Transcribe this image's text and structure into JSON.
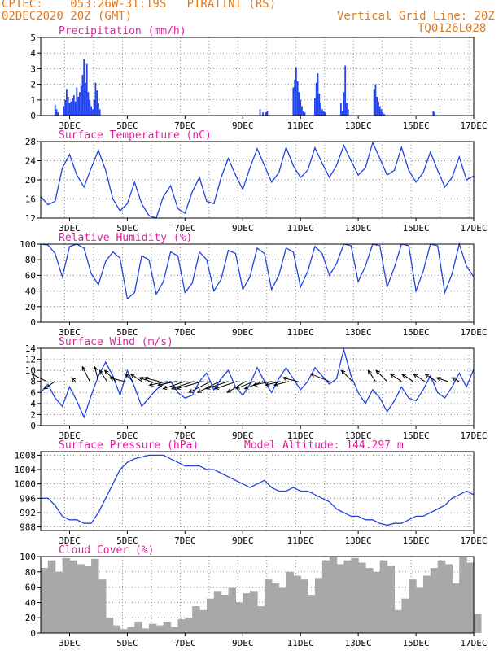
{
  "header": {
    "left_line1": "CPTEC:    053:26W-31:19S   PIRATINI (RS)",
    "left_line2": "02DEC2020 20Z (GMT)",
    "right_line1": "Vertical Grid Line: 20Z",
    "right_line2": "TQ0126L028"
  },
  "colors": {
    "header": "#e07a1f",
    "title": "#e020a0",
    "line": "#2244dd",
    "bar": "#2244ee",
    "cloud": "#a8a8a8"
  },
  "time_axis": {
    "start": "02DEC2020 00Z",
    "tick_labels": [
      "3DEC",
      "5DEC",
      "7DEC",
      "9DEC",
      "11DEC",
      "13DEC",
      "15DEC",
      "17DEC"
    ],
    "tick_days": [
      1,
      3,
      5,
      7,
      9,
      11,
      13,
      15
    ],
    "xlim_days": [
      0,
      15
    ],
    "vertical_grid_hour_utc": 20
  },
  "chart_data": [
    {
      "id": "precip",
      "type": "bar",
      "title": "Precipitation (mm/h)",
      "ylim": [
        0,
        5
      ],
      "yticks": [
        0,
        1,
        2,
        3,
        4,
        5
      ],
      "x_days": [
        0.5,
        0.55,
        0.6,
        0.8,
        0.85,
        0.9,
        0.95,
        1.0,
        1.05,
        1.1,
        1.15,
        1.2,
        1.25,
        1.3,
        1.35,
        1.4,
        1.45,
        1.5,
        1.55,
        1.6,
        1.65,
        1.7,
        1.75,
        1.8,
        1.85,
        1.9,
        1.95,
        2.0,
        2.05,
        7.6,
        7.7,
        7.8,
        7.85,
        8.75,
        8.8,
        8.85,
        8.9,
        8.95,
        9.0,
        9.05,
        9.1,
        9.15,
        9.5,
        9.55,
        9.6,
        9.65,
        9.7,
        9.75,
        9.8,
        9.85,
        10.4,
        10.45,
        10.5,
        10.55,
        10.6,
        10.65,
        11.55,
        11.6,
        11.65,
        11.7,
        11.75,
        11.8,
        11.85,
        11.9,
        13.6,
        13.65
      ],
      "values": [
        0.7,
        0.4,
        0.2,
        0.6,
        1.0,
        1.7,
        1.2,
        0.8,
        0.9,
        1.1,
        1.3,
        0.9,
        1.8,
        1.2,
        1.5,
        1.9,
        2.6,
        3.6,
        2.1,
        3.3,
        1.5,
        1.0,
        0.6,
        0.4,
        1.0,
        2.1,
        1.6,
        0.8,
        0.4,
        0.4,
        0.2,
        0.2,
        0.3,
        1.8,
        2.3,
        3.1,
        2.2,
        1.5,
        1.0,
        0.6,
        0.3,
        0.2,
        1.1,
        2.1,
        2.7,
        1.4,
        0.8,
        0.4,
        0.3,
        0.2,
        0.8,
        0.3,
        1.5,
        3.2,
        0.8,
        0.4,
        1.7,
        2.0,
        1.2,
        0.9,
        0.6,
        0.4,
        0.2,
        0.1,
        0.3,
        0.2
      ]
    },
    {
      "id": "temp",
      "type": "line",
      "title": "Surface Temperature (nC)",
      "ylim": [
        12,
        28
      ],
      "yticks": [
        12,
        16,
        20,
        24,
        28
      ],
      "x_days": [
        0.0,
        0.25,
        0.5,
        0.75,
        1.0,
        1.25,
        1.5,
        1.75,
        2.0,
        2.25,
        2.5,
        2.75,
        3.0,
        3.25,
        3.5,
        3.75,
        4.0,
        4.25,
        4.5,
        4.75,
        5.0,
        5.25,
        5.5,
        5.75,
        6.0,
        6.25,
        6.5,
        6.75,
        7.0,
        7.25,
        7.5,
        7.75,
        8.0,
        8.25,
        8.5,
        8.75,
        9.0,
        9.25,
        9.5,
        9.75,
        10.0,
        10.25,
        10.5,
        10.75,
        11.0,
        11.25,
        11.5,
        11.75,
        12.0,
        12.25,
        12.5,
        12.75,
        13.0,
        13.25,
        13.5,
        13.75,
        14.0,
        14.25,
        14.5,
        14.75,
        15.0
      ],
      "values": [
        16.5,
        14.8,
        15.5,
        22.5,
        25.3,
        21.0,
        18.5,
        22.5,
        26.2,
        22.0,
        16.0,
        13.5,
        15.0,
        19.5,
        15.0,
        12.5,
        12.0,
        16.5,
        18.8,
        14.0,
        13.0,
        17.5,
        20.5,
        15.5,
        15.0,
        20.5,
        24.5,
        21.0,
        18.0,
        22.5,
        26.5,
        23.0,
        19.5,
        21.5,
        26.8,
        23.0,
        20.5,
        22.0,
        26.7,
        23.5,
        20.5,
        23.0,
        27.2,
        24.0,
        21.0,
        22.5,
        27.8,
        24.5,
        21.0,
        22.0,
        26.8,
        22.0,
        19.5,
        21.5,
        25.8,
        22.0,
        18.5,
        20.5,
        24.8,
        20.0,
        20.8
      ]
    },
    {
      "id": "rh",
      "type": "line",
      "title": "Relative Humidity (%)",
      "ylim": [
        0,
        100
      ],
      "yticks": [
        0,
        20,
        40,
        60,
        80,
        100
      ],
      "x_days": [
        0.0,
        0.25,
        0.5,
        0.75,
        1.0,
        1.25,
        1.5,
        1.75,
        2.0,
        2.25,
        2.5,
        2.75,
        3.0,
        3.25,
        3.5,
        3.75,
        4.0,
        4.25,
        4.5,
        4.75,
        5.0,
        5.25,
        5.5,
        5.75,
        6.0,
        6.25,
        6.5,
        6.75,
        7.0,
        7.25,
        7.5,
        7.75,
        8.0,
        8.25,
        8.5,
        8.75,
        9.0,
        9.25,
        9.5,
        9.75,
        10.0,
        10.25,
        10.5,
        10.75,
        11.0,
        11.25,
        11.5,
        11.75,
        12.0,
        12.25,
        12.5,
        12.75,
        13.0,
        13.25,
        13.5,
        13.75,
        14.0,
        14.25,
        14.5,
        14.75,
        15.0
      ],
      "values": [
        100,
        99,
        88,
        58,
        97,
        100,
        95,
        62,
        48,
        78,
        90,
        82,
        30,
        38,
        85,
        80,
        36,
        52,
        90,
        85,
        38,
        50,
        90,
        80,
        40,
        55,
        92,
        88,
        42,
        58,
        95,
        88,
        42,
        60,
        95,
        90,
        45,
        65,
        97,
        88,
        60,
        75,
        100,
        98,
        52,
        72,
        100,
        98,
        45,
        70,
        100,
        98,
        40,
        65,
        100,
        98,
        38,
        62,
        100,
        72,
        58
      ]
    },
    {
      "id": "wind",
      "type": "line",
      "title": "Surface Wind (m/s)",
      "ylim": [
        0,
        14
      ],
      "yticks": [
        0,
        2,
        4,
        6,
        8,
        10,
        12,
        14
      ],
      "x_days": [
        0.0,
        0.25,
        0.5,
        0.75,
        1.0,
        1.25,
        1.5,
        1.75,
        2.0,
        2.25,
        2.5,
        2.75,
        3.0,
        3.25,
        3.5,
        3.75,
        4.0,
        4.25,
        4.5,
        4.75,
        5.0,
        5.25,
        5.5,
        5.75,
        6.0,
        6.25,
        6.5,
        6.75,
        7.0,
        7.25,
        7.5,
        7.75,
        8.0,
        8.25,
        8.5,
        8.75,
        9.0,
        9.25,
        9.5,
        9.75,
        10.0,
        10.25,
        10.5,
        10.75,
        11.0,
        11.25,
        11.5,
        11.75,
        12.0,
        12.25,
        12.5,
        12.75,
        13.0,
        13.25,
        13.5,
        13.75,
        14.0,
        14.25,
        14.5,
        14.75,
        15.0
      ],
      "values": [
        6.0,
        7.5,
        5.0,
        3.5,
        7.0,
        4.5,
        1.5,
        5.5,
        9.0,
        11.5,
        9.0,
        5.5,
        10.0,
        7.0,
        3.5,
        5.0,
        6.5,
        7.5,
        8.0,
        6.0,
        5.0,
        5.5,
        8.0,
        9.5,
        6.5,
        8.5,
        10.0,
        7.0,
        5.5,
        7.5,
        10.5,
        8.0,
        6.0,
        8.5,
        10.5,
        8.5,
        6.5,
        8.0,
        10.5,
        9.0,
        7.5,
        8.5,
        13.8,
        9.0,
        6.0,
        4.0,
        6.5,
        5.0,
        2.5,
        4.5,
        7.0,
        5.0,
        4.5,
        6.5,
        9.0,
        6.0,
        5.0,
        7.0,
        9.5,
        7.0,
        10.2
      ],
      "vectors": {
        "x_days": [
          0.2,
          0.5,
          1.2,
          1.7,
          2.0,
          2.3,
          2.6,
          2.9,
          3.2,
          3.5,
          3.8,
          4.1,
          4.4,
          4.7,
          5.0,
          5.3,
          5.6,
          5.9,
          6.2,
          6.5,
          6.8,
          7.1,
          7.4,
          7.7,
          8.0,
          8.3,
          8.6,
          8.9,
          10.0,
          10.8,
          11.6,
          12.0,
          12.5,
          12.9,
          13.3,
          13.7,
          14.1,
          14.5
        ],
        "u": [
          -4,
          -3,
          -1,
          -2,
          -1,
          -2,
          -3,
          -4,
          -2,
          -3,
          -3,
          -4,
          -5,
          -5,
          -6,
          -6,
          -7,
          -6,
          -6,
          -6,
          -6,
          -5,
          -5,
          -5,
          -5,
          -4,
          -4,
          -4,
          -5,
          -3,
          -2,
          -3,
          -3,
          -3,
          -3,
          -3,
          -3,
          -2
        ],
        "v": [
          2,
          -2,
          1,
          4,
          4,
          3,
          3,
          1,
          2,
          2,
          1,
          1,
          -1,
          -1,
          -2,
          -2,
          -2,
          -3,
          -3,
          -2,
          -2,
          -3,
          -2,
          -2,
          -1,
          -1,
          -1,
          1,
          2,
          3,
          3,
          3,
          2,
          2,
          2,
          2,
          1,
          1
        ]
      }
    },
    {
      "id": "pres",
      "type": "line",
      "title": "Surface Pressure (hPa)",
      "annotation": "Model Altitude: 144.297 m",
      "ylim": [
        987,
        1009
      ],
      "yticks": [
        988,
        992,
        996,
        1000,
        1004,
        1008
      ],
      "x_days": [
        0.0,
        0.25,
        0.5,
        0.75,
        1.0,
        1.25,
        1.5,
        1.75,
        2.0,
        2.25,
        2.5,
        2.75,
        3.0,
        3.25,
        3.5,
        3.75,
        4.0,
        4.25,
        4.5,
        4.75,
        5.0,
        5.25,
        5.5,
        5.75,
        6.0,
        6.25,
        6.5,
        6.75,
        7.0,
        7.25,
        7.5,
        7.75,
        8.0,
        8.25,
        8.5,
        8.75,
        9.0,
        9.25,
        9.5,
        9.75,
        10.0,
        10.25,
        10.5,
        10.75,
        11.0,
        11.25,
        11.5,
        11.75,
        12.0,
        12.25,
        12.5,
        12.75,
        13.0,
        13.25,
        13.5,
        13.75,
        14.0,
        14.25,
        14.5,
        14.75,
        15.0
      ],
      "values": [
        996,
        996,
        994,
        991,
        990,
        990,
        989,
        989,
        992,
        996,
        1000,
        1004,
        1006,
        1007,
        1007.5,
        1008,
        1008,
        1008,
        1007,
        1006,
        1005,
        1005,
        1005,
        1004,
        1004,
        1003,
        1002,
        1001,
        1000,
        999,
        1000,
        1001,
        999,
        998,
        998,
        999,
        998,
        998,
        997,
        996,
        995,
        993,
        992,
        991,
        991,
        990,
        990,
        989,
        988.5,
        989,
        989,
        990,
        991,
        991,
        992,
        993,
        994,
        996,
        997,
        998,
        997
      ]
    },
    {
      "id": "cloud",
      "type": "bar",
      "title": "Cloud Cover (%)",
      "ylim": [
        0,
        100
      ],
      "yticks": [
        0,
        20,
        40,
        60,
        80,
        100
      ],
      "x_days": [
        0.0,
        0.25,
        0.5,
        0.75,
        1.0,
        1.25,
        1.5,
        1.75,
        2.0,
        2.25,
        2.5,
        2.75,
        3.0,
        3.25,
        3.5,
        3.75,
        4.0,
        4.25,
        4.5,
        4.75,
        5.0,
        5.25,
        5.5,
        5.75,
        6.0,
        6.25,
        6.5,
        6.75,
        7.0,
        7.25,
        7.5,
        7.75,
        8.0,
        8.25,
        8.5,
        8.75,
        9.0,
        9.25,
        9.5,
        9.75,
        10.0,
        10.25,
        10.5,
        10.75,
        11.0,
        11.25,
        11.5,
        11.75,
        12.0,
        12.25,
        12.5,
        12.75,
        13.0,
        13.25,
        13.5,
        13.75,
        14.0,
        14.25,
        14.5,
        14.75,
        15.0
      ],
      "values": [
        85,
        95,
        80,
        98,
        95,
        90,
        88,
        97,
        70,
        20,
        10,
        5,
        8,
        15,
        6,
        12,
        10,
        15,
        8,
        18,
        20,
        35,
        30,
        45,
        55,
        50,
        60,
        40,
        52,
        55,
        35,
        70,
        65,
        60,
        80,
        75,
        70,
        50,
        72,
        95,
        100,
        90,
        95,
        98,
        92,
        85,
        80,
        95,
        88,
        30,
        45,
        70,
        60,
        75,
        85,
        95,
        90,
        65,
        100,
        92,
        25
      ]
    }
  ]
}
